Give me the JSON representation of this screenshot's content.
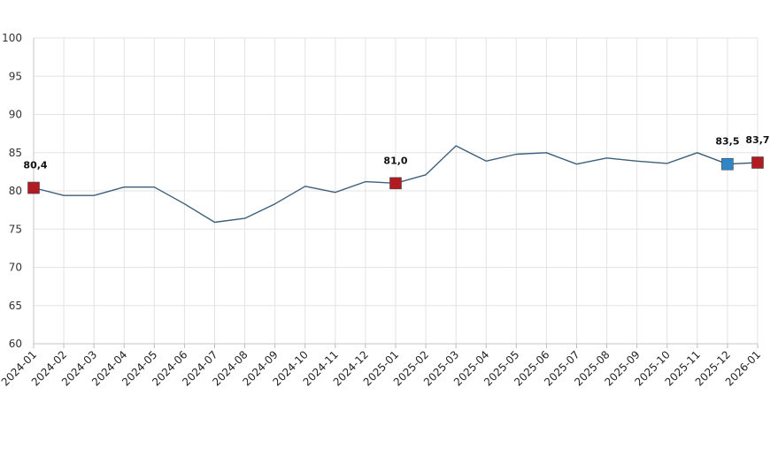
{
  "chart_data": {
    "type": "line",
    "title": "",
    "xlabel": "",
    "ylabel": "",
    "ylim": [
      60,
      100
    ],
    "yticks": [
      60,
      65,
      70,
      75,
      80,
      85,
      90,
      95,
      100
    ],
    "grid": true,
    "legend": "none",
    "x": [
      "2024-01",
      "2024-02",
      "2024-03",
      "2024-04",
      "2024-05",
      "2024-06",
      "2024-07",
      "2024-08",
      "2024-09",
      "2024-10",
      "2024-11",
      "2024-12",
      "2025-01",
      "2025-02",
      "2025-03",
      "2025-04",
      "2025-05",
      "2025-06",
      "2025-07",
      "2025-08",
      "2025-09",
      "2025-10",
      "2025-11",
      "2025-12",
      "2026-01"
    ],
    "series": [
      {
        "values": [
          80.4,
          79.4,
          79.4,
          80.5,
          80.5,
          78.3,
          75.9,
          76.4,
          78.3,
          80.6,
          79.8,
          81.2,
          81.0,
          82.1,
          85.9,
          83.9,
          84.8,
          85.0,
          83.5,
          84.3,
          83.9,
          83.6,
          85.0,
          83.5,
          83.7
        ],
        "color": "#3d5f7a"
      }
    ],
    "highlights": [
      {
        "index": 0,
        "label": "80,4",
        "color": "#b01c22"
      },
      {
        "index": 12,
        "label": "81,0",
        "color": "#b01c22"
      },
      {
        "index": 23,
        "label": "83,5",
        "color": "#2e86c8"
      },
      {
        "index": 24,
        "label": "83,7",
        "color": "#b01c22"
      }
    ]
  }
}
